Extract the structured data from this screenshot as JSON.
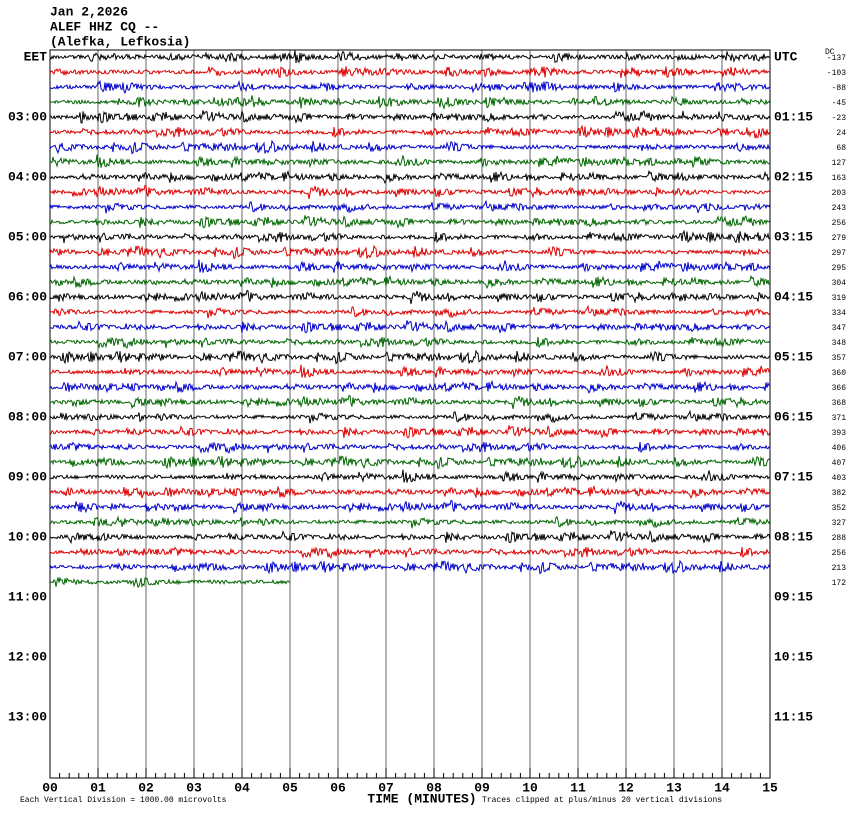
{
  "chart_data": {
    "type": "helicorder",
    "title_lines": [
      "Jan 2,2026",
      "ALEF HHZ CQ --",
      "(Alefka, Lefkosia)"
    ],
    "left_labels": [
      "EET",
      "03:00",
      "04:00",
      "05:00",
      "06:00",
      "07:00",
      "08:00",
      "09:00",
      "10:00",
      "11:00",
      "12:00",
      "13:00"
    ],
    "right_labels": [
      "UTC",
      "01:15",
      "02:15",
      "03:15",
      "04:15",
      "05:15",
      "06:15",
      "07:15",
      "08:15",
      "09:15",
      "10:15",
      "11:15"
    ],
    "dc_label": "DC",
    "dc_values": [
      -137,
      -103,
      -88,
      -45,
      -23,
      24,
      68,
      127,
      163,
      203,
      243,
      256,
      279,
      297,
      295,
      304,
      319,
      334,
      347,
      348,
      357,
      360,
      366,
      368,
      371,
      393,
      406,
      407,
      403,
      382,
      352,
      327,
      288,
      256,
      213,
      172
    ],
    "trace_colors": [
      "#000000",
      "#dd0000",
      "#0000cc",
      "#006600"
    ],
    "trace_end": 5,
    "xlim": [
      0,
      15
    ],
    "xticks": [
      {
        "value": 0,
        "label": "00"
      },
      {
        "value": 1,
        "label": "01"
      },
      {
        "value": 2,
        "label": "02"
      },
      {
        "value": 3,
        "label": "03"
      },
      {
        "value": 4,
        "label": "04"
      },
      {
        "value": 5,
        "label": "05"
      },
      {
        "value": 6,
        "label": "06"
      },
      {
        "value": 7,
        "label": "07"
      },
      {
        "value": 8,
        "label": "08"
      },
      {
        "value": 9,
        "label": "09"
      },
      {
        "value": 10,
        "label": "10"
      },
      {
        "value": 11,
        "label": "11"
      },
      {
        "value": 12,
        "label": "12"
      },
      {
        "value": 13,
        "label": "13"
      },
      {
        "value": 14,
        "label": "14"
      },
      {
        "value": 15,
        "label": "15"
      }
    ],
    "xlabel": "TIME (MINUTES)",
    "footer_left": "Each Vertical Division = 1000.00 microvolts",
    "footer_right": "Traces clipped at plus/minus 20 vertical divisions"
  }
}
